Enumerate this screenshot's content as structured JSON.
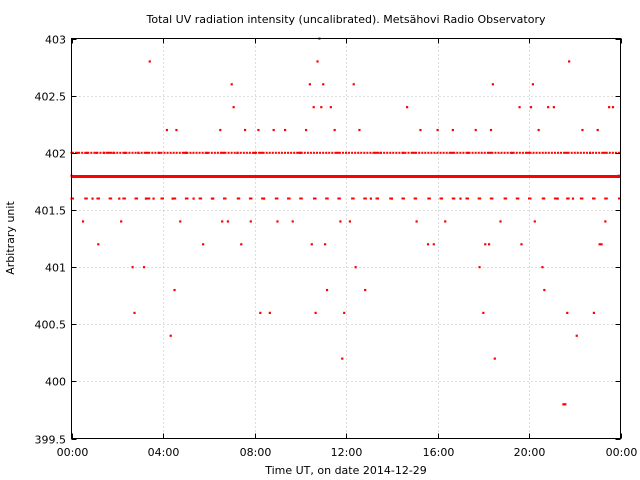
{
  "chart_data": {
    "type": "scatter",
    "title": "Total UV radiation intensity (uncalibrated). Metsähovi Radio Observatory",
    "xlabel": "Time UT, on date 2014-12-29",
    "ylabel": "Arbitrary unit",
    "xlim": [
      "00:00",
      "24:00"
    ],
    "ylim": [
      399.5,
      403
    ],
    "x_tick_labels": [
      "00:00",
      "04:00",
      "08:00",
      "12:00",
      "16:00",
      "20:00",
      "00:00"
    ],
    "y_ticks": [
      399.5,
      400,
      400.5,
      401,
      401.5,
      402,
      402.5,
      403
    ],
    "grid": true,
    "marker_color": "#ff0000",
    "series": [
      {
        "points": [
          [
            "00:00",
            401.8
          ],
          [
            "00:15",
            402.0
          ],
          [
            "00:30",
            401.4
          ],
          [
            "00:40",
            402.0
          ],
          [
            "00:55",
            401.6
          ],
          [
            "01:05",
            402.0
          ],
          [
            "01:10",
            401.2
          ],
          [
            "01:25",
            402.0
          ],
          [
            "01:50",
            402.0
          ],
          [
            "02:05",
            401.6
          ],
          [
            "02:10",
            401.4
          ],
          [
            "02:20",
            402.0
          ],
          [
            "02:40",
            401.0
          ],
          [
            "02:45",
            400.6
          ],
          [
            "02:55",
            402.0
          ],
          [
            "03:10",
            401.0
          ],
          [
            "03:15",
            401.6
          ],
          [
            "03:25",
            402.8
          ],
          [
            "03:35",
            401.6
          ],
          [
            "03:50",
            402.0
          ],
          [
            "04:10",
            402.2
          ],
          [
            "04:20",
            400.4
          ],
          [
            "04:25",
            401.6
          ],
          [
            "04:30",
            400.8
          ],
          [
            "04:35",
            402.2
          ],
          [
            "04:45",
            401.4
          ],
          [
            "05:00",
            402.0
          ],
          [
            "05:20",
            401.6
          ],
          [
            "05:45",
            401.2
          ],
          [
            "05:55",
            402.0
          ],
          [
            "06:10",
            401.6
          ],
          [
            "06:30",
            402.2
          ],
          [
            "06:35",
            401.4
          ],
          [
            "06:50",
            401.4
          ],
          [
            "07:00",
            402.6
          ],
          [
            "07:05",
            402.4
          ],
          [
            "07:15",
            402.0
          ],
          [
            "07:25",
            401.2
          ],
          [
            "07:35",
            402.2
          ],
          [
            "07:50",
            401.4
          ],
          [
            "08:00",
            402.0
          ],
          [
            "08:10",
            402.2
          ],
          [
            "08:15",
            400.6
          ],
          [
            "08:25",
            401.6
          ],
          [
            "08:40",
            400.6
          ],
          [
            "08:50",
            402.2
          ],
          [
            "09:00",
            401.4
          ],
          [
            "09:20",
            402.2
          ],
          [
            "09:40",
            401.4
          ],
          [
            "10:00",
            402.0
          ],
          [
            "10:15",
            402.2
          ],
          [
            "10:25",
            402.6
          ],
          [
            "10:30",
            401.2
          ],
          [
            "10:35",
            402.4
          ],
          [
            "10:40",
            400.6
          ],
          [
            "10:45",
            402.8
          ],
          [
            "10:50",
            403.0
          ],
          [
            "10:55",
            402.4
          ],
          [
            "11:00",
            402.6
          ],
          [
            "11:05",
            401.2
          ],
          [
            "11:10",
            400.8
          ],
          [
            "11:20",
            402.4
          ],
          [
            "11:30",
            402.2
          ],
          [
            "11:45",
            401.4
          ],
          [
            "11:50",
            400.2
          ],
          [
            "11:55",
            400.6
          ],
          [
            "12:10",
            401.4
          ],
          [
            "12:20",
            402.6
          ],
          [
            "12:25",
            401.0
          ],
          [
            "12:35",
            402.2
          ],
          [
            "12:50",
            400.8
          ],
          [
            "13:05",
            401.6
          ],
          [
            "13:30",
            402.0
          ],
          [
            "14:00",
            401.6
          ],
          [
            "14:30",
            402.0
          ],
          [
            "14:40",
            402.4
          ],
          [
            "15:05",
            401.4
          ],
          [
            "15:15",
            402.2
          ],
          [
            "15:35",
            401.2
          ],
          [
            "15:50",
            401.2
          ],
          [
            "16:00",
            402.2
          ],
          [
            "16:20",
            401.4
          ],
          [
            "16:40",
            402.2
          ],
          [
            "17:00",
            401.6
          ],
          [
            "17:20",
            402.0
          ],
          [
            "17:40",
            402.2
          ],
          [
            "17:50",
            401.0
          ],
          [
            "18:00",
            400.6
          ],
          [
            "18:05",
            401.2
          ],
          [
            "18:15",
            401.2
          ],
          [
            "18:20",
            402.2
          ],
          [
            "18:25",
            402.6
          ],
          [
            "18:30",
            400.2
          ],
          [
            "18:45",
            401.4
          ],
          [
            "19:15",
            402.0
          ],
          [
            "19:35",
            402.4
          ],
          [
            "19:40",
            401.2
          ],
          [
            "20:05",
            402.4
          ],
          [
            "20:10",
            402.6
          ],
          [
            "20:15",
            401.4
          ],
          [
            "20:25",
            402.2
          ],
          [
            "20:35",
            401.0
          ],
          [
            "20:40",
            400.8
          ],
          [
            "20:50",
            402.4
          ],
          [
            "21:05",
            402.4
          ],
          [
            "21:15",
            401.6
          ],
          [
            "21:30",
            399.8
          ],
          [
            "21:35",
            399.8
          ],
          [
            "21:40",
            400.6
          ],
          [
            "21:45",
            402.8
          ],
          [
            "21:55",
            401.6
          ],
          [
            "22:05",
            400.4
          ],
          [
            "22:20",
            402.2
          ],
          [
            "22:40",
            402.0
          ],
          [
            "22:50",
            400.6
          ],
          [
            "23:00",
            402.2
          ],
          [
            "23:05",
            401.2
          ],
          [
            "23:10",
            401.2
          ],
          [
            "23:20",
            401.4
          ],
          [
            "23:30",
            402.4
          ],
          [
            "23:40",
            402.4
          ],
          [
            "23:55",
            401.8
          ]
        ]
      }
    ]
  }
}
